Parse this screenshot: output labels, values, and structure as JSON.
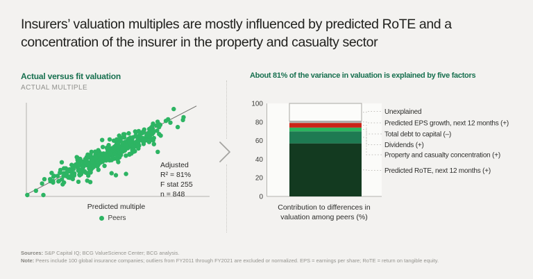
{
  "page": {
    "title": "Insurers’ valuation multiples are mostly influenced by predicted RoTE and a concentration of the insurer in the property and casualty sector",
    "title_lines": [
      "Insurers’ valuation multiples are mostly influenced by predicted RoTE and a",
      "concentration of the insurer in the property and casualty sector"
    ],
    "background": "#f3f2f0"
  },
  "chart_data": [
    {
      "type": "scatter",
      "title": "Actual versus fit valuation",
      "ylabel": "ACTUAL MULTIPLE",
      "xlabel": "Predicted multiple",
      "legend_position": "bottom",
      "grid": false,
      "series": [
        {
          "name": "Peers",
          "color": "#2db463",
          "n": 848
        }
      ],
      "annotation_lines": [
        "Adjusted",
        "R² = 81%",
        "F stat 255",
        "n = 848"
      ],
      "stats": {
        "adjusted_r2_pct": 81,
        "f_stat": 255,
        "n": 848
      },
      "trendline": {
        "x0": 0.0,
        "y0": 0.02,
        "x1": 0.95,
        "y1": 0.98,
        "color": "#6e6e6a"
      },
      "generator": {
        "seed": 13,
        "points": 430,
        "x_mean": 0.47,
        "x_sd": 0.16,
        "slope": 0.93,
        "intercept": 0.035,
        "noise_sd": 0.055,
        "outlier_every": 37,
        "outlier_scale": 2.8
      },
      "axis_color": "#b3b2ae"
    },
    {
      "type": "bar",
      "stacked": true,
      "title": "About 81% of the variance in valuation is explained by five factors",
      "xlabel": "Contribution to differences in valuation among peers (%)",
      "xlabel_lines": [
        "Contribution to differences in",
        "valuation among peers (%)"
      ],
      "ylim": [
        0,
        100
      ],
      "yticks": [
        0,
        20,
        40,
        60,
        80,
        100
      ],
      "grid": false,
      "explained_total_pct": 81,
      "segments_bottom_to_top": [
        {
          "label": "Predicted RoTE, next 12 months (+)",
          "value": 57,
          "color": "#133a20"
        },
        {
          "label": "Property and casualty concentration (+)",
          "value": 13,
          "color": "#1e7a52"
        },
        {
          "label": "Dividends (+)",
          "value": 4,
          "color": "#2bb45f"
        },
        {
          "label": "Total debt to capital (–)",
          "value": 5,
          "color": "#ca2418"
        },
        {
          "label": "Predicted EPS growth, next 12 months (+)",
          "value": 2,
          "color": "#b4b2b0"
        },
        {
          "label": "Unexplained",
          "value": 19,
          "color": "#fcfcfa",
          "border_color": "#a9a7a3"
        }
      ]
    }
  ],
  "separator": {
    "chevron": "right-chevron"
  },
  "footer": {
    "sources_label": "Sources:",
    "sources_text": "S&P Capital IQ; BCG ValueScience Center; BCG analysis.",
    "note_label": "Note:",
    "note_text": "Peers include 100 global insurance companies; outliers from FY2011 through FY2021 are excluded or normalized. EPS = earnings per share; RoTE = return on tangible equity."
  }
}
